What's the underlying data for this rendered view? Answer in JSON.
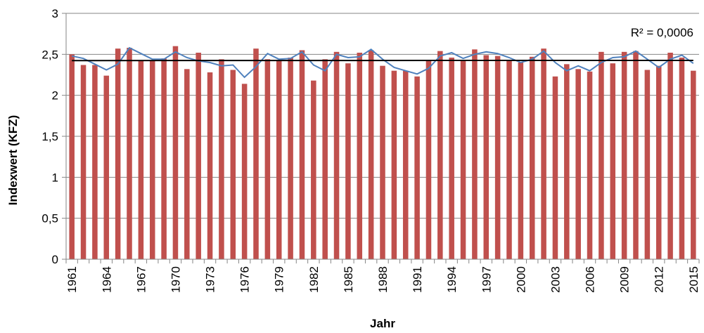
{
  "chart_data": {
    "type": "bar",
    "title": "",
    "xlabel": "Jahr",
    "ylabel": "Indexwert (KFZ)",
    "ylim": [
      0,
      3
    ],
    "y_ticks": [
      "0",
      "0,5",
      "1",
      "1,5",
      "2",
      "2,5",
      "3"
    ],
    "grid": "horizontal",
    "x": [
      1961,
      1962,
      1963,
      1964,
      1965,
      1966,
      1967,
      1968,
      1969,
      1970,
      1971,
      1972,
      1973,
      1974,
      1975,
      1976,
      1977,
      1978,
      1979,
      1980,
      1981,
      1982,
      1983,
      1984,
      1985,
      1986,
      1987,
      1988,
      1989,
      1990,
      1991,
      1992,
      1993,
      1994,
      1995,
      1996,
      1997,
      1998,
      1999,
      2000,
      2001,
      2002,
      2003,
      2004,
      2005,
      2006,
      2007,
      2008,
      2009,
      2010,
      2011,
      2012,
      2013,
      2014,
      2015
    ],
    "x_tick_labels": [
      "1961",
      "1964",
      "1967",
      "1970",
      "1973",
      "1976",
      "1979",
      "1982",
      "1985",
      "1988",
      "1991",
      "1994",
      "1997",
      "2000",
      "2003",
      "2006",
      "2009",
      "2012",
      "2015"
    ],
    "series": [
      {
        "kind": "bar",
        "values": [
          2.5,
          2.37,
          2.37,
          2.24,
          2.57,
          2.58,
          2.43,
          2.43,
          2.45,
          2.6,
          2.32,
          2.52,
          2.28,
          2.44,
          2.31,
          2.14,
          2.57,
          2.44,
          2.43,
          2.46,
          2.55,
          2.18,
          2.44,
          2.53,
          2.39,
          2.52,
          2.55,
          2.36,
          2.3,
          2.3,
          2.23,
          2.43,
          2.54,
          2.46,
          2.43,
          2.56,
          2.49,
          2.48,
          2.42,
          2.4,
          2.47,
          2.57,
          2.23,
          2.38,
          2.32,
          2.29,
          2.53,
          2.39,
          2.53,
          2.54,
          2.31,
          2.36,
          2.52,
          2.46,
          2.3
        ]
      },
      {
        "kind": "line",
        "values": [
          2.48,
          2.45,
          2.38,
          2.31,
          2.38,
          2.58,
          2.51,
          2.44,
          2.44,
          2.53,
          2.46,
          2.42,
          2.4,
          2.36,
          2.37,
          2.22,
          2.35,
          2.51,
          2.44,
          2.45,
          2.53,
          2.37,
          2.3,
          2.5,
          2.46,
          2.47,
          2.56,
          2.44,
          2.34,
          2.3,
          2.26,
          2.33,
          2.48,
          2.52,
          2.45,
          2.5,
          2.53,
          2.51,
          2.46,
          2.4,
          2.44,
          2.54,
          2.4,
          2.3,
          2.36,
          2.3,
          2.4,
          2.46,
          2.47,
          2.54,
          2.44,
          2.34,
          2.44,
          2.49,
          2.39
        ]
      }
    ],
    "trendline": {
      "start": 2.424,
      "end": 2.426
    },
    "annotation": "R² = 0,0006",
    "colors": {
      "bar": "#C0504D",
      "line": "#4F81BD",
      "trend": "#000000",
      "grid": "#868686",
      "axis": "#868686"
    }
  }
}
